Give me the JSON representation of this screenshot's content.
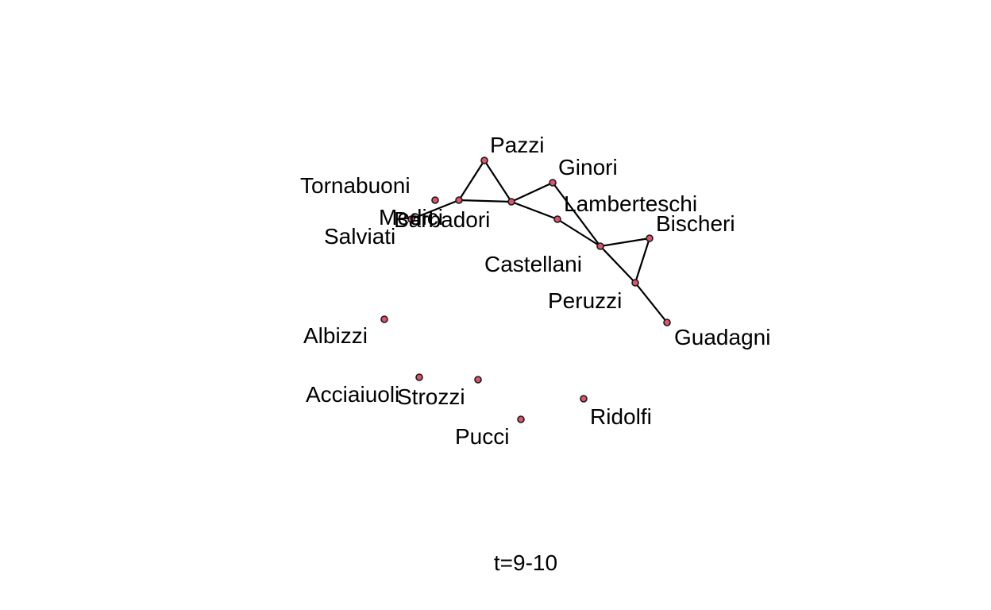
{
  "caption": "t=9-10",
  "colors": {
    "node_fill": "#df536b",
    "edge": "#000000"
  },
  "nodes": [
    {
      "id": "Pazzi",
      "label": "Pazzi"
    },
    {
      "id": "Ginori",
      "label": "Ginori"
    },
    {
      "id": "Tornabuoni",
      "label": "Tornabuoni"
    },
    {
      "id": "Medici",
      "label": "Medici"
    },
    {
      "id": "Barbadori",
      "label": "Barbadori"
    },
    {
      "id": "Salviati",
      "label": "Salviati"
    },
    {
      "id": "Lamberteschi",
      "label": "Lamberteschi"
    },
    {
      "id": "Bischeri",
      "label": "Bischeri"
    },
    {
      "id": "Castellani",
      "label": "Castellani"
    },
    {
      "id": "Peruzzi",
      "label": "Peruzzi"
    },
    {
      "id": "Guadagni",
      "label": "Guadagni"
    },
    {
      "id": "Albizzi",
      "label": "Albizzi"
    },
    {
      "id": "Acciaiuoli",
      "label": "Acciaiuoli"
    },
    {
      "id": "Strozzi",
      "label": "Strozzi"
    },
    {
      "id": "Ridolfi",
      "label": "Ridolfi"
    },
    {
      "id": "Pucci",
      "label": "Pucci"
    }
  ],
  "edges": [
    [
      "Salviati",
      "Medici"
    ],
    [
      "Medici",
      "Pazzi"
    ],
    [
      "Medici",
      "Barbadori"
    ],
    [
      "Pazzi",
      "Barbadori"
    ],
    [
      "Barbadori",
      "Ginori"
    ],
    [
      "Barbadori",
      "Lamberteschi"
    ],
    [
      "Ginori",
      "Castellani"
    ],
    [
      "Lamberteschi",
      "Castellani"
    ],
    [
      "Castellani",
      "Bischeri"
    ],
    [
      "Castellani",
      "Peruzzi"
    ],
    [
      "Bischeri",
      "Peruzzi"
    ],
    [
      "Peruzzi",
      "Guadagni"
    ]
  ]
}
